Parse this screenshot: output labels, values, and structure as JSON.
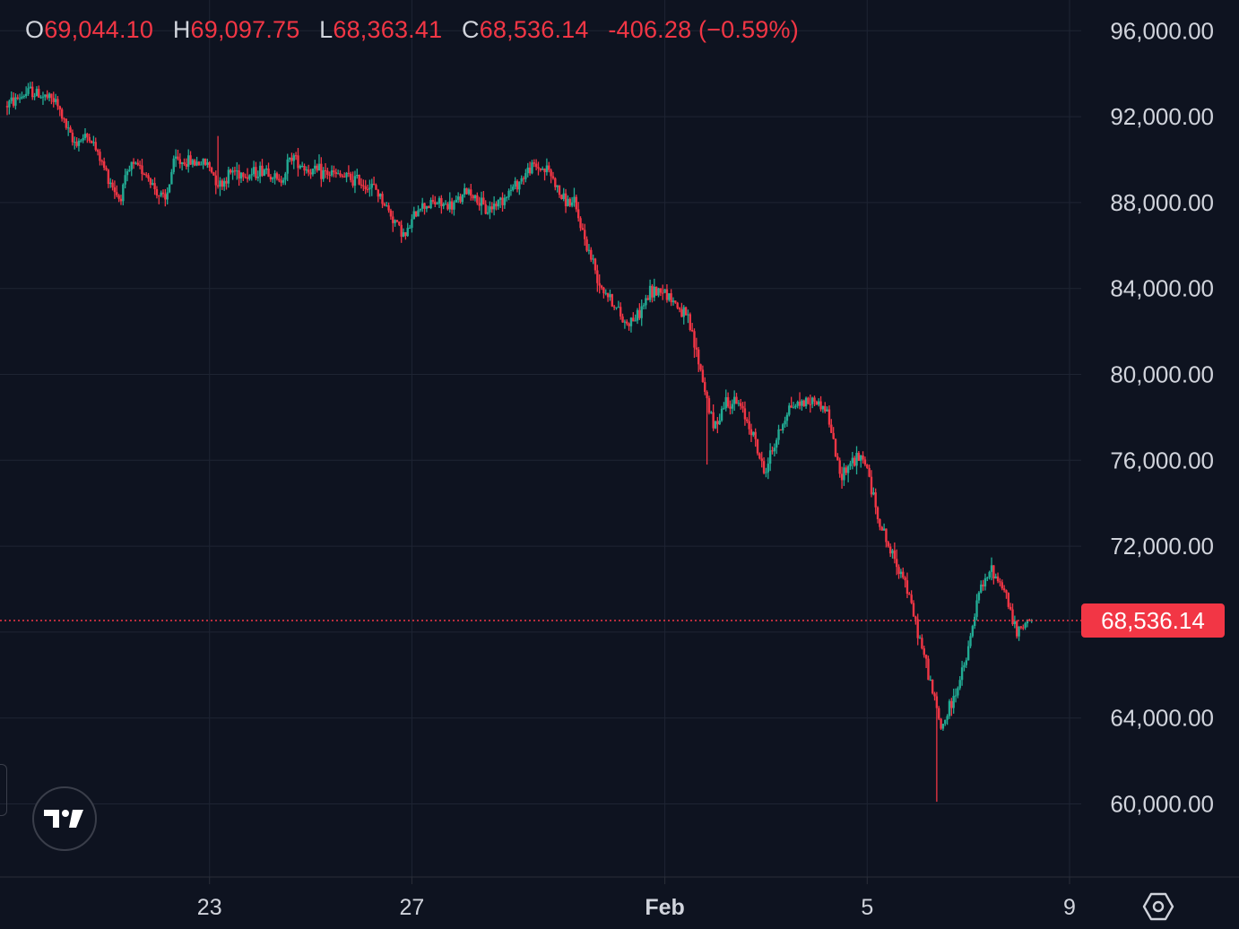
{
  "legend": {
    "open_key": "O",
    "open": "69,044.10",
    "high_key": "H",
    "high": "69,097.75",
    "low_key": "L",
    "low": "68,363.41",
    "close_key": "C",
    "close": "68,536.14",
    "change": "-406.28 (−0.59%)"
  },
  "chart_data": {
    "type": "candlestick",
    "title": "",
    "y_axis": {
      "ticks": [
        "96,000.00",
        "92,000.00",
        "88,000.00",
        "84,000.00",
        "80,000.00",
        "76,000.00",
        "72,000.00",
        "64,000.00",
        "60,000.00"
      ],
      "tick_values": [
        96000,
        92000,
        88000,
        84000,
        80000,
        76000,
        72000,
        64000,
        60000
      ],
      "range": [
        57000,
        97500
      ],
      "position": "right"
    },
    "x_axis": {
      "ticks": [
        "23",
        "27",
        "Feb",
        "5",
        "9"
      ],
      "range_dates": [
        "2026-01-19T00:00",
        "2026-02-09T00:00"
      ]
    },
    "last_price": {
      "label": "68,536.14",
      "value": 68536.14
    },
    "grid": true,
    "colors": {
      "up": "#22ab94",
      "down": "#f23645",
      "background": "#0e1320",
      "grid": "#1e2433",
      "text": "#d1d4dc"
    },
    "price_path": [
      [
        "2026-01-19T00:00",
        92500
      ],
      [
        "2026-01-19T12:00",
        93200
      ],
      [
        "2026-01-20T00:00",
        92700
      ],
      [
        "2026-01-20T08:00",
        90800
      ],
      [
        "2026-01-20T16:00",
        91100
      ],
      [
        "2026-01-21T00:00",
        89400
      ],
      [
        "2026-01-21T06:00",
        88200
      ],
      [
        "2026-01-21T12:00",
        89700
      ],
      [
        "2026-01-21T18:00",
        89500
      ],
      [
        "2026-01-22T00:00",
        88500
      ],
      [
        "2026-01-22T04:00",
        88000
      ],
      [
        "2026-01-22T08:00",
        89900
      ],
      [
        "2026-01-22T16:00",
        89900
      ],
      [
        "2026-01-23T00:00",
        89800
      ],
      [
        "2026-01-23T06:00",
        88800
      ],
      [
        "2026-01-23T12:00",
        89500
      ],
      [
        "2026-01-23T20:00",
        89300
      ],
      [
        "2026-01-24T04:00",
        89600
      ],
      [
        "2026-01-24T10:00",
        88900
      ],
      [
        "2026-01-24T16:00",
        90200
      ],
      [
        "2026-01-25T00:00",
        89500
      ],
      [
        "2026-01-25T12:00",
        89300
      ],
      [
        "2026-01-26T00:00",
        89000
      ],
      [
        "2026-01-26T08:00",
        88600
      ],
      [
        "2026-01-26T14:00",
        87600
      ],
      [
        "2026-01-26T22:00",
        86400
      ],
      [
        "2026-01-27T04:00",
        87800
      ],
      [
        "2026-01-27T12:00",
        88000
      ],
      [
        "2026-01-27T20:00",
        87800
      ],
      [
        "2026-01-28T04:00",
        88600
      ],
      [
        "2026-01-28T12:00",
        87600
      ],
      [
        "2026-01-28T20:00",
        88200
      ],
      [
        "2026-01-29T04:00",
        89000
      ],
      [
        "2026-01-29T10:00",
        89700
      ],
      [
        "2026-01-29T18:00",
        89500
      ],
      [
        "2026-01-30T00:00",
        88200
      ],
      [
        "2026-01-30T06:00",
        87900
      ],
      [
        "2026-01-30T12:00",
        86000
      ],
      [
        "2026-01-30T18:00",
        84300
      ],
      [
        "2026-01-31T00:00",
        83400
      ],
      [
        "2026-01-31T06:00",
        82400
      ],
      [
        "2026-01-31T12:00",
        82700
      ],
      [
        "2026-01-31T18:00",
        83800
      ],
      [
        "2026-02-01T00:00",
        84000
      ],
      [
        "2026-02-01T06:00",
        83300
      ],
      [
        "2026-02-01T12:00",
        82500
      ],
      [
        "2026-02-01T18:00",
        80200
      ],
      [
        "2026-02-02T00:00",
        77500
      ],
      [
        "2026-02-02T06:00",
        78800
      ],
      [
        "2026-02-02T12:00",
        78600
      ],
      [
        "2026-02-02T18:00",
        77500
      ],
      [
        "2026-02-03T00:00",
        75400
      ],
      [
        "2026-02-03T06:00",
        77000
      ],
      [
        "2026-02-03T12:00",
        78500
      ],
      [
        "2026-02-03T18:00",
        78700
      ],
      [
        "2026-02-04T00:00",
        78800
      ],
      [
        "2026-02-04T06:00",
        78300
      ],
      [
        "2026-02-04T12:00",
        75300
      ],
      [
        "2026-02-04T18:00",
        76000
      ],
      [
        "2026-02-05T00:00",
        76000
      ],
      [
        "2026-02-05T06:00",
        73400
      ],
      [
        "2026-02-05T12:00",
        71700
      ],
      [
        "2026-02-05T18:00",
        70700
      ],
      [
        "2026-02-06T00:00",
        68400
      ],
      [
        "2026-02-06T06:00",
        66100
      ],
      [
        "2026-02-06T12:00",
        63500
      ],
      [
        "2026-02-06T18:00",
        64900
      ],
      [
        "2026-02-07T00:00",
        66700
      ],
      [
        "2026-02-07T06:00",
        69800
      ],
      [
        "2026-02-07T12:00",
        70900
      ],
      [
        "2026-02-07T18:00",
        70000
      ],
      [
        "2026-02-08T00:00",
        67900
      ],
      [
        "2026-02-08T06:00",
        68536.14
      ]
    ],
    "notable_wicks": [
      {
        "time": "2026-02-06T09:00",
        "low": 60100
      },
      {
        "time": "2026-02-01T20:00",
        "low": 75800
      },
      {
        "time": "2026-01-23T04:00",
        "high": 91100
      }
    ]
  }
}
